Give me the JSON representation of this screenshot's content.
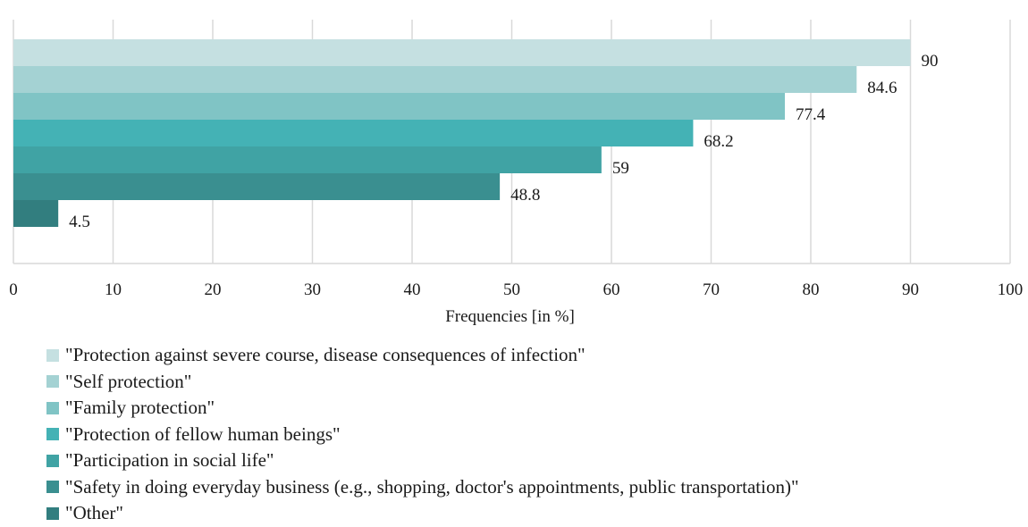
{
  "chart_data": {
    "type": "bar",
    "orientation": "horizontal",
    "xlabel": "Frequencies [in %]",
    "xlim": [
      0,
      100
    ],
    "x_ticks": [
      0,
      10,
      20,
      30,
      40,
      50,
      60,
      70,
      80,
      90,
      100
    ],
    "grid": "vertical",
    "legend_position": "bottom",
    "series": [
      {
        "name": "\"Protection against severe course, disease consequences of infection\"",
        "value": 90,
        "value_label": "90",
        "color": "#c5e0e1"
      },
      {
        "name": "\"Self protection\"",
        "value": 84.6,
        "value_label": "84.6",
        "color": "#a4d2d3"
      },
      {
        "name": "\"Family protection\"",
        "value": 77.4,
        "value_label": "77.4",
        "color": "#80c4c5"
      },
      {
        "name": "\"Protection of fellow human beings\"",
        "value": 68.2,
        "value_label": "68.2",
        "color": "#44b2b5"
      },
      {
        "name": "\"Participation in social life\"",
        "value": 59,
        "value_label": "59",
        "color": "#40a3a4"
      },
      {
        "name": "\"Safety in doing everyday business (e.g., shopping, doctor's appointments, public transportation)\"",
        "value": 48.8,
        "value_label": "48.8",
        "color": "#3a8f90"
      },
      {
        "name": "\"Other\"",
        "value": 4.5,
        "value_label": "4.5",
        "color": "#327e7f"
      }
    ]
  }
}
